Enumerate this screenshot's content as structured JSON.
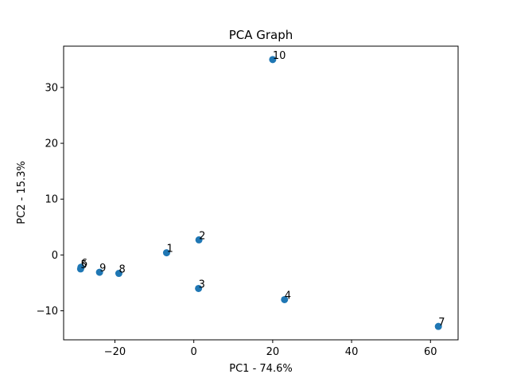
{
  "chart_data": {
    "type": "scatter",
    "title": "PCA Graph",
    "xlabel": "PC1 - 74.6%",
    "ylabel": "PC2 - 15.3%",
    "xlim": [
      -33,
      67
    ],
    "ylim": [
      -15.2,
      37.4
    ],
    "xticks": [
      -20,
      0,
      20,
      40,
      60
    ],
    "yticks": [
      -10,
      0,
      10,
      20,
      30
    ],
    "xtick_labels": [
      "−20",
      "0",
      "20",
      "40",
      "60"
    ],
    "ytick_labels": [
      "−10",
      "0",
      "10",
      "20",
      "30"
    ],
    "grid": false,
    "legend": "none",
    "marker_color": "#1f77b4",
    "points": [
      {
        "label": "1",
        "x": -6.9,
        "y": 0.4
      },
      {
        "label": "2",
        "x": 1.3,
        "y": 2.7
      },
      {
        "label": "3",
        "x": 1.2,
        "y": -6.0
      },
      {
        "label": "4",
        "x": 23.0,
        "y": -8.0
      },
      {
        "label": "5",
        "x": -28.7,
        "y": -2.5
      },
      {
        "label": "6",
        "x": -28.6,
        "y": -2.2
      },
      {
        "label": "7",
        "x": 62.0,
        "y": -12.8
      },
      {
        "label": "8",
        "x": -19.0,
        "y": -3.3
      },
      {
        "label": "9",
        "x": -23.9,
        "y": -3.1
      },
      {
        "label": "10",
        "x": 20.0,
        "y": 35.0
      }
    ]
  }
}
